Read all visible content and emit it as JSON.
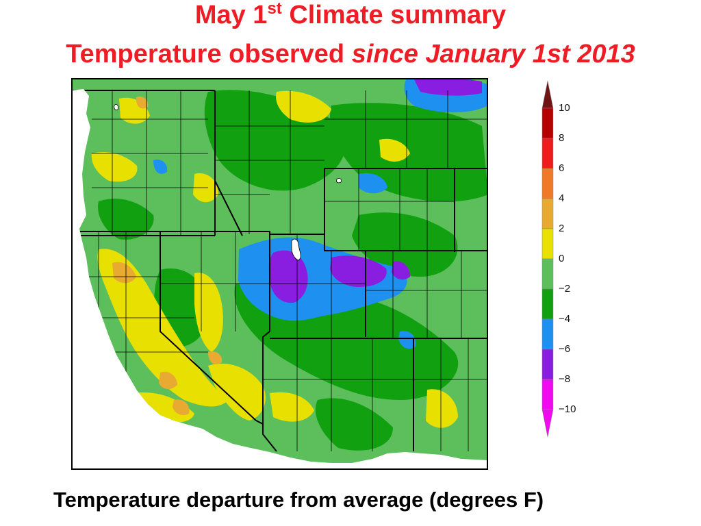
{
  "title": {
    "line1_prefix": "May 1",
    "line1_sup": "st",
    "line1_suffix": " Climate summary",
    "line2_plain": "Temperature observed ",
    "line2_italic": "since January 1st 2013"
  },
  "caption": "Temperature departure from average (degrees F)",
  "legend": {
    "labels": [
      "10",
      "8",
      "6",
      "4",
      "2",
      "0",
      "−2",
      "−4",
      "−6",
      "−8",
      "−10"
    ],
    "bins": [
      {
        "range": "8 to 10",
        "color": "#b40000"
      },
      {
        "range": "6 to 8",
        "color": "#ee1c1c"
      },
      {
        "range": "4 to 6",
        "color": "#f07a28"
      },
      {
        "range": "2 to 4",
        "color": "#e8aa30"
      },
      {
        "range": "0 to 2",
        "color": "#e8e000"
      },
      {
        "range": "-2 to 0",
        "color": "#5cbf5c"
      },
      {
        "range": "-4 to -2",
        "color": "#10a010"
      },
      {
        "range": "-6 to -4",
        "color": "#1e90f0"
      },
      {
        "range": "-8 to -6",
        "color": "#8a1ee0"
      },
      {
        "range": "-10 to -8",
        "color": "#f00af0"
      }
    ],
    "top_arrow_color": "#6e1414",
    "bottom_arrow_color": "#f00af0"
  },
  "map": {
    "colors": {
      "base": "#5cbf5c",
      "dark_green": "#10a010",
      "yellow": "#e8e000",
      "orange": "#e8aa30",
      "blue": "#1e90f0",
      "purple": "#8a1ee0",
      "water": "#ffffff",
      "border": "#000000"
    }
  }
}
